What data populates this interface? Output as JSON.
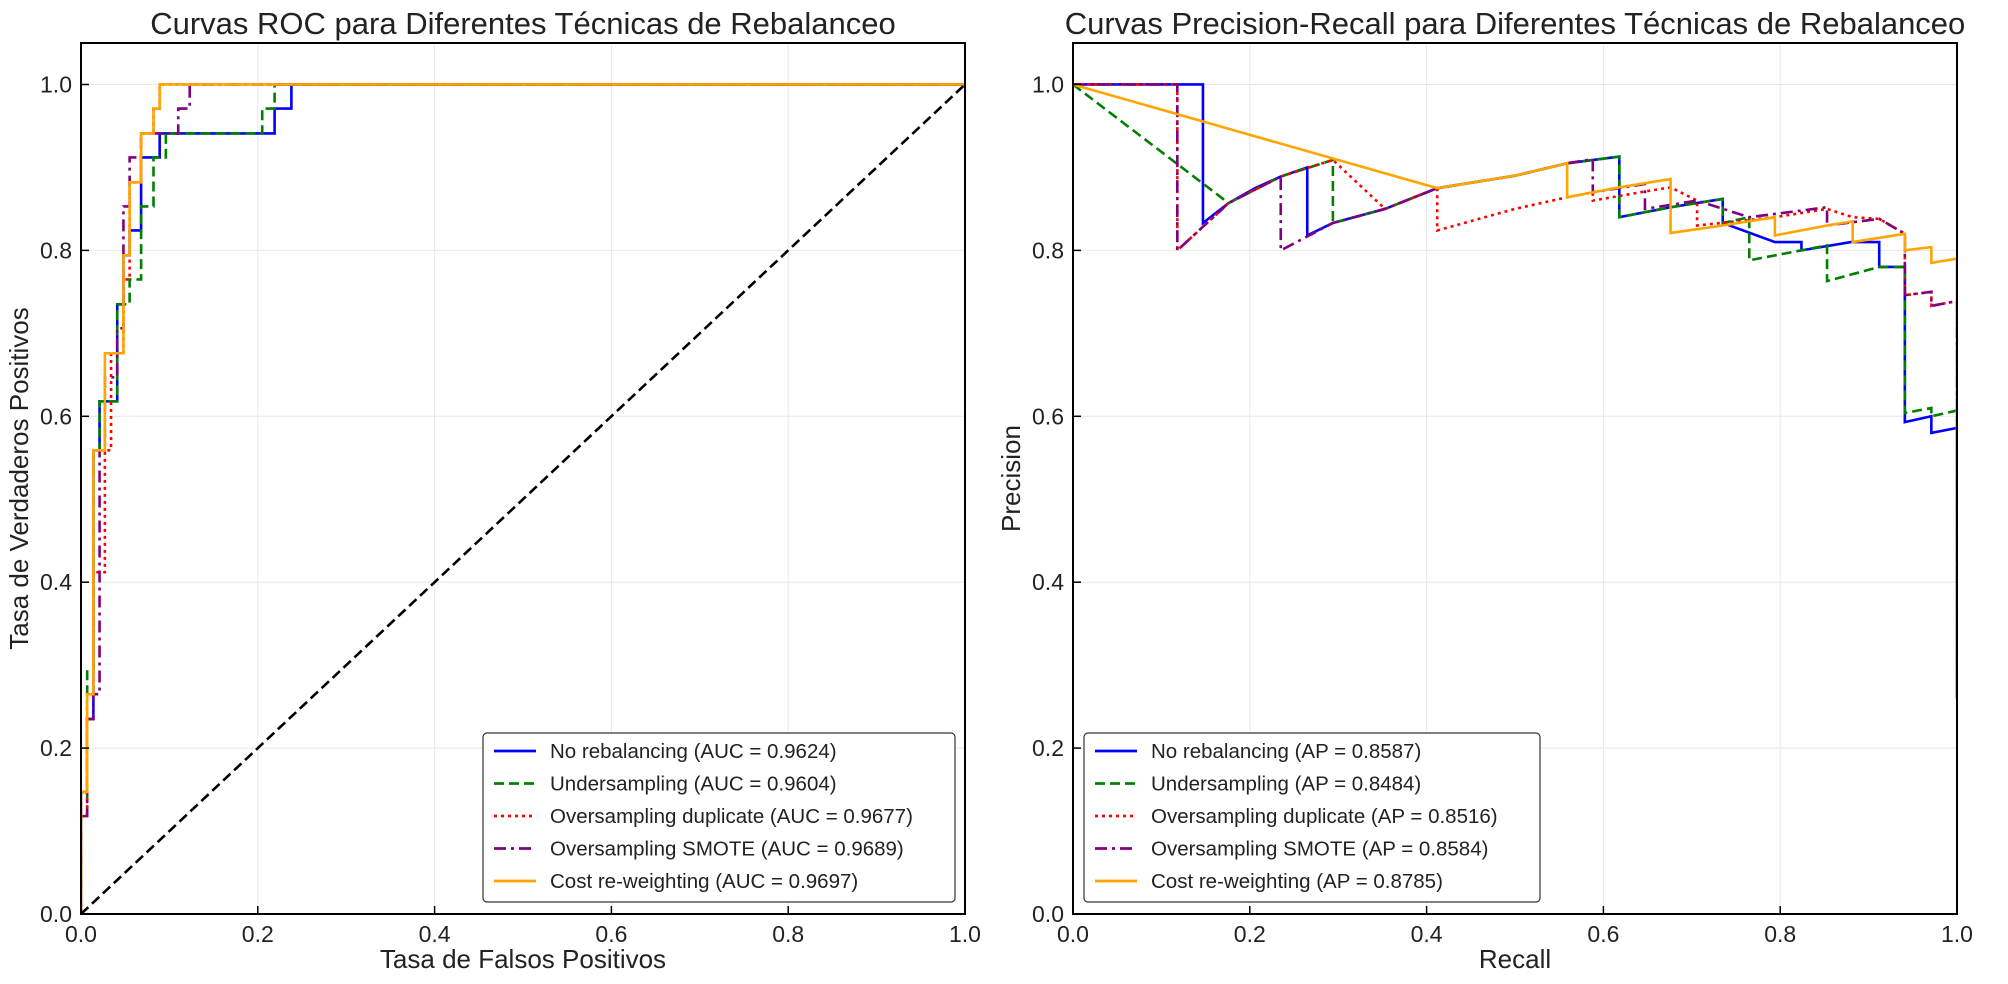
{
  "chart_data": [
    {
      "type": "line",
      "title": "Curvas ROC para Diferentes Técnicas de Rebalanceo",
      "xlabel": "Tasa de Falsos Positivos",
      "ylabel": "Tasa de Verdaderos Positivos",
      "xlim": [
        0,
        1
      ],
      "ylim": [
        0,
        1.05
      ],
      "xticks": [
        0.0,
        0.2,
        0.4,
        0.6,
        0.8,
        1.0
      ],
      "yticks": [
        0.0,
        0.2,
        0.4,
        0.6,
        0.8,
        1.0
      ],
      "xtick_labels": [
        "0.0",
        "0.2",
        "0.4",
        "0.6",
        "0.8",
        "1.0"
      ],
      "ytick_labels": [
        "0.0",
        "0.2",
        "0.4",
        "0.6",
        "0.8",
        "1.0"
      ],
      "grid": true,
      "legend_position": "lower-right",
      "series": [
        {
          "name": "No rebalancing (AUC = 0.9624)",
          "color": "#0000ff",
          "dash": "solid",
          "points": [
            [
              0,
              0
            ],
            [
              0,
              0.147
            ],
            [
              0.007,
              0.147
            ],
            [
              0.007,
              0.235
            ],
            [
              0.014,
              0.235
            ],
            [
              0.014,
              0.559
            ],
            [
              0.021,
              0.559
            ],
            [
              0.021,
              0.618
            ],
            [
              0.041,
              0.618
            ],
            [
              0.041,
              0.735
            ],
            [
              0.048,
              0.735
            ],
            [
              0.048,
              0.794
            ],
            [
              0.055,
              0.794
            ],
            [
              0.055,
              0.824
            ],
            [
              0.068,
              0.824
            ],
            [
              0.068,
              0.912
            ],
            [
              0.089,
              0.912
            ],
            [
              0.089,
              0.941
            ],
            [
              0.219,
              0.941
            ],
            [
              0.219,
              0.971
            ],
            [
              0.238,
              0.971
            ],
            [
              0.238,
              1.0
            ],
            [
              1.0,
              1.0
            ]
          ]
        },
        {
          "name": "Undersampling (AUC = 0.9604)",
          "color": "#008000",
          "dash": "dashed",
          "points": [
            [
              0,
              0
            ],
            [
              0,
              0.118
            ],
            [
              0.007,
              0.118
            ],
            [
              0.007,
              0.294
            ],
            [
              0.014,
              0.294
            ],
            [
              0.014,
              0.559
            ],
            [
              0.021,
              0.559
            ],
            [
              0.021,
              0.618
            ],
            [
              0.041,
              0.618
            ],
            [
              0.041,
              0.735
            ],
            [
              0.055,
              0.735
            ],
            [
              0.055,
              0.765
            ],
            [
              0.068,
              0.765
            ],
            [
              0.068,
              0.853
            ],
            [
              0.082,
              0.853
            ],
            [
              0.082,
              0.912
            ],
            [
              0.096,
              0.912
            ],
            [
              0.096,
              0.941
            ],
            [
              0.205,
              0.941
            ],
            [
              0.205,
              0.971
            ],
            [
              0.219,
              0.971
            ],
            [
              0.219,
              1.0
            ],
            [
              1.0,
              1.0
            ]
          ]
        },
        {
          "name": "Oversampling duplicate (AUC = 0.9677)",
          "color": "#ff0000",
          "dash": "dotted",
          "points": [
            [
              0,
              0
            ],
            [
              0,
              0.118
            ],
            [
              0.007,
              0.118
            ],
            [
              0.007,
              0.265
            ],
            [
              0.014,
              0.265
            ],
            [
              0.014,
              0.412
            ],
            [
              0.027,
              0.412
            ],
            [
              0.027,
              0.559
            ],
            [
              0.034,
              0.559
            ],
            [
              0.034,
              0.676
            ],
            [
              0.048,
              0.676
            ],
            [
              0.048,
              0.765
            ],
            [
              0.055,
              0.765
            ],
            [
              0.055,
              0.882
            ],
            [
              0.068,
              0.882
            ],
            [
              0.068,
              0.941
            ],
            [
              0.082,
              0.941
            ],
            [
              0.082,
              0.971
            ],
            [
              0.089,
              0.971
            ],
            [
              0.089,
              1.0
            ],
            [
              1.0,
              1.0
            ]
          ]
        },
        {
          "name": "Oversampling SMOTE (AUC = 0.9689)",
          "color": "#800080",
          "dash": "dashdot",
          "points": [
            [
              0,
              0
            ],
            [
              0,
              0.118
            ],
            [
              0.007,
              0.118
            ],
            [
              0.007,
              0.235
            ],
            [
              0.014,
              0.235
            ],
            [
              0.014,
              0.265
            ],
            [
              0.021,
              0.265
            ],
            [
              0.021,
              0.559
            ],
            [
              0.027,
              0.559
            ],
            [
              0.027,
              0.647
            ],
            [
              0.041,
              0.647
            ],
            [
              0.041,
              0.706
            ],
            [
              0.048,
              0.706
            ],
            [
              0.048,
              0.853
            ],
            [
              0.055,
              0.853
            ],
            [
              0.055,
              0.912
            ],
            [
              0.068,
              0.912
            ],
            [
              0.068,
              0.941
            ],
            [
              0.11,
              0.941
            ],
            [
              0.11,
              0.971
            ],
            [
              0.123,
              0.971
            ],
            [
              0.123,
              1.0
            ],
            [
              1.0,
              1.0
            ]
          ]
        },
        {
          "name": "Cost re-weighting (AUC = 0.9697)",
          "color": "#ffa500",
          "dash": "solid",
          "points": [
            [
              0,
              0
            ],
            [
              0,
              0.147
            ],
            [
              0.007,
              0.147
            ],
            [
              0.007,
              0.265
            ],
            [
              0.014,
              0.265
            ],
            [
              0.014,
              0.559
            ],
            [
              0.027,
              0.559
            ],
            [
              0.027,
              0.676
            ],
            [
              0.048,
              0.676
            ],
            [
              0.048,
              0.794
            ],
            [
              0.055,
              0.794
            ],
            [
              0.055,
              0.882
            ],
            [
              0.068,
              0.882
            ],
            [
              0.068,
              0.941
            ],
            [
              0.082,
              0.941
            ],
            [
              0.082,
              0.971
            ],
            [
              0.089,
              0.971
            ],
            [
              0.089,
              1.0
            ],
            [
              1.0,
              1.0
            ]
          ]
        },
        {
          "name": "",
          "color": "#000000",
          "dash": "dashed",
          "role": "diagonal",
          "points": [
            [
              0,
              0
            ],
            [
              1,
              1
            ]
          ]
        }
      ]
    },
    {
      "type": "line",
      "title": "Curvas Precision-Recall para Diferentes Técnicas de Rebalanceo",
      "xlabel": "Recall",
      "ylabel": "Precision",
      "xlim": [
        0,
        1
      ],
      "ylim": [
        0,
        1.05
      ],
      "xticks": [
        0.0,
        0.2,
        0.4,
        0.6,
        0.8,
        1.0
      ],
      "yticks": [
        0.0,
        0.2,
        0.4,
        0.6,
        0.8,
        1.0
      ],
      "xtick_labels": [
        "0.0",
        "0.2",
        "0.4",
        "0.6",
        "0.8",
        "1.0"
      ],
      "ytick_labels": [
        "0.0",
        "0.2",
        "0.4",
        "0.6",
        "0.8",
        "1.0"
      ],
      "grid": true,
      "legend_position": "lower-left",
      "series": [
        {
          "name": "No rebalancing (AP = 0.8587)",
          "color": "#0000ff",
          "dash": "solid",
          "points": [
            [
              0,
              1.0
            ],
            [
              0.147,
              1.0
            ],
            [
              0.147,
              0.833
            ],
            [
              0.176,
              0.857
            ],
            [
              0.206,
              0.875
            ],
            [
              0.235,
              0.889
            ],
            [
              0.265,
              0.9
            ],
            [
              0.265,
              0.818
            ],
            [
              0.294,
              0.833
            ],
            [
              0.353,
              0.85
            ],
            [
              0.412,
              0.875
            ],
            [
              0.5,
              0.89
            ],
            [
              0.559,
              0.905
            ],
            [
              0.618,
              0.913
            ],
            [
              0.618,
              0.84
            ],
            [
              0.676,
              0.852
            ],
            [
              0.735,
              0.862
            ],
            [
              0.735,
              0.833
            ],
            [
              0.794,
              0.81
            ],
            [
              0.824,
              0.81
            ],
            [
              0.824,
              0.8
            ],
            [
              0.88,
              0.81
            ],
            [
              0.912,
              0.81
            ],
            [
              0.912,
              0.78
            ],
            [
              0.941,
              0.78
            ],
            [
              0.941,
              0.593
            ],
            [
              0.971,
              0.6
            ],
            [
              0.971,
              0.58
            ],
            [
              1.0,
              0.586
            ],
            [
              1.0,
              0.26
            ]
          ]
        },
        {
          "name": "Undersampling (AP = 0.8484)",
          "color": "#008000",
          "dash": "dashed",
          "points": [
            [
              0,
              1.0
            ],
            [
              0.176,
              0.857
            ],
            [
              0.235,
              0.889
            ],
            [
              0.294,
              0.909
            ],
            [
              0.294,
              0.833
            ],
            [
              0.353,
              0.85
            ],
            [
              0.412,
              0.875
            ],
            [
              0.5,
              0.89
            ],
            [
              0.559,
              0.905
            ],
            [
              0.618,
              0.913
            ],
            [
              0.618,
              0.84
            ],
            [
              0.676,
              0.852
            ],
            [
              0.735,
              0.862
            ],
            [
              0.735,
              0.833
            ],
            [
              0.765,
              0.84
            ],
            [
              0.765,
              0.788
            ],
            [
              0.853,
              0.806
            ],
            [
              0.853,
              0.763
            ],
            [
              0.912,
              0.78
            ],
            [
              0.941,
              0.78
            ],
            [
              0.941,
              0.604
            ],
            [
              0.971,
              0.61
            ],
            [
              0.971,
              0.6
            ],
            [
              1.0,
              0.607
            ],
            [
              1.0,
              0.26
            ]
          ]
        },
        {
          "name": "Oversampling duplicate (AP = 0.8516)",
          "color": "#ff0000",
          "dash": "dotted",
          "points": [
            [
              0,
              1.0
            ],
            [
              0.118,
              1.0
            ],
            [
              0.118,
              0.8
            ],
            [
              0.176,
              0.857
            ],
            [
              0.235,
              0.889
            ],
            [
              0.294,
              0.909
            ],
            [
              0.353,
              0.85
            ],
            [
              0.412,
              0.875
            ],
            [
              0.412,
              0.824
            ],
            [
              0.5,
              0.85
            ],
            [
              0.559,
              0.864
            ],
            [
              0.588,
              0.87
            ],
            [
              0.588,
              0.86
            ],
            [
              0.647,
              0.871
            ],
            [
              0.676,
              0.876
            ],
            [
              0.706,
              0.86
            ],
            [
              0.706,
              0.83
            ],
            [
              0.794,
              0.84
            ],
            [
              0.853,
              0.85
            ],
            [
              0.882,
              0.84
            ],
            [
              0.912,
              0.838
            ],
            [
              0.941,
              0.82
            ],
            [
              0.941,
              0.746
            ],
            [
              0.971,
              0.75
            ],
            [
              0.971,
              0.733
            ],
            [
              1.0,
              0.739
            ],
            [
              1.0,
              0.26
            ]
          ]
        },
        {
          "name": "Oversampling SMOTE (AP = 0.8584)",
          "color": "#800080",
          "dash": "dashdot",
          "points": [
            [
              0,
              1.0
            ],
            [
              0.118,
              1.0
            ],
            [
              0.118,
              0.8
            ],
            [
              0.176,
              0.857
            ],
            [
              0.235,
              0.889
            ],
            [
              0.235,
              0.8
            ],
            [
              0.294,
              0.833
            ],
            [
              0.353,
              0.85
            ],
            [
              0.412,
              0.875
            ],
            [
              0.5,
              0.89
            ],
            [
              0.559,
              0.905
            ],
            [
              0.588,
              0.91
            ],
            [
              0.588,
              0.87
            ],
            [
              0.647,
              0.88
            ],
            [
              0.647,
              0.85
            ],
            [
              0.706,
              0.86
            ],
            [
              0.765,
              0.84
            ],
            [
              0.853,
              0.852
            ],
            [
              0.853,
              0.83
            ],
            [
              0.912,
              0.838
            ],
            [
              0.941,
              0.82
            ],
            [
              0.941,
              0.746
            ],
            [
              0.971,
              0.75
            ],
            [
              0.971,
              0.733
            ],
            [
              1.0,
              0.739
            ],
            [
              1.0,
              0.26
            ]
          ]
        },
        {
          "name": "Cost re-weighting (AP = 0.8785)",
          "color": "#ffa500",
          "dash": "solid",
          "points": [
            [
              0,
              1.0
            ],
            [
              0.412,
              0.875
            ],
            [
              0.5,
              0.89
            ],
            [
              0.559,
              0.905
            ],
            [
              0.559,
              0.864
            ],
            [
              0.618,
              0.876
            ],
            [
              0.676,
              0.886
            ],
            [
              0.676,
              0.821
            ],
            [
              0.735,
              0.83
            ],
            [
              0.794,
              0.84
            ],
            [
              0.794,
              0.818
            ],
            [
              0.853,
              0.83
            ],
            [
              0.882,
              0.835
            ],
            [
              0.882,
              0.81
            ],
            [
              0.941,
              0.82
            ],
            [
              0.941,
              0.8
            ],
            [
              0.971,
              0.804
            ],
            [
              0.971,
              0.785
            ],
            [
              1.0,
              0.79
            ],
            [
              1.0,
              0.26
            ]
          ]
        }
      ]
    }
  ]
}
